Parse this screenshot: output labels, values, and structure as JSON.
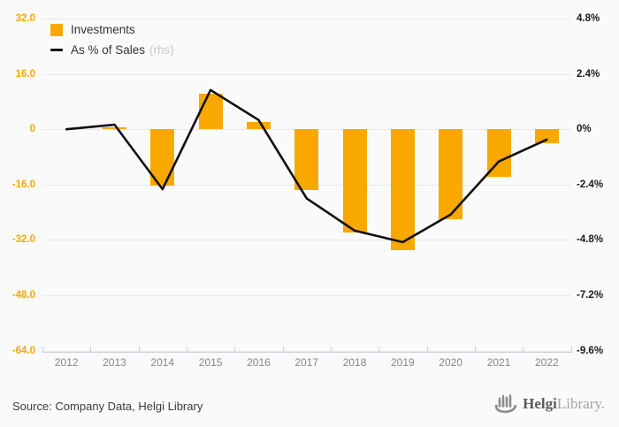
{
  "chart_data": {
    "type": "bar",
    "title": "",
    "categories": [
      "2012",
      "2013",
      "2014",
      "2015",
      "2016",
      "2017",
      "2018",
      "2019",
      "2020",
      "2021",
      "2022"
    ],
    "series": [
      {
        "name": "Investments",
        "type": "bar",
        "axis": "left",
        "values": [
          0,
          0.5,
          -16.4,
          10.3,
          2.1,
          -17.6,
          -30,
          -35,
          -26,
          -13.7,
          -4
        ]
      },
      {
        "name": "As % of Sales (rhs)",
        "type": "line",
        "axis": "right",
        "values": [
          0,
          0.2,
          -2.6,
          1.7,
          0.4,
          -3.0,
          -4.4,
          -4.9,
          -3.7,
          -1.4,
          -0.45
        ]
      }
    ],
    "left_axis": {
      "min": -64,
      "max": 32,
      "tick_labels": [
        "32.0",
        "16.0",
        "0",
        "-16.0",
        "-32.0",
        "-48.0",
        "-64.0"
      ]
    },
    "right_axis": {
      "min": -9.6,
      "max": 4.8,
      "tick_labels": [
        "4.8%",
        "2.4%",
        "0%",
        "-2.4%",
        "-4.8%",
        "-7.2%",
        "-9.6%"
      ]
    },
    "grid": "horizontal",
    "legend_position": "top-left"
  },
  "legend": {
    "items": [
      {
        "label": "Investments",
        "marker": "square"
      },
      {
        "label": "As % of Sales",
        "suffix": "(rhs)",
        "marker": "line"
      }
    ]
  },
  "footer": {
    "source": "Source: Company Data, Helgi Library",
    "logo_bold": "Helgi",
    "logo_light": "Library."
  },
  "colors": {
    "bar": "#F9A800",
    "line": "#111111",
    "left_axis_text": "#F9A800",
    "right_axis_text": "#1c1c1c",
    "year_text": "#85858f",
    "grid": "#e8e8e8",
    "axis_line": "#c9d0e2",
    "legend_text": "#333333",
    "legend_muted": "#c6c6c6",
    "background": "#fafafa",
    "logo_gray": "#8c8c8c"
  }
}
